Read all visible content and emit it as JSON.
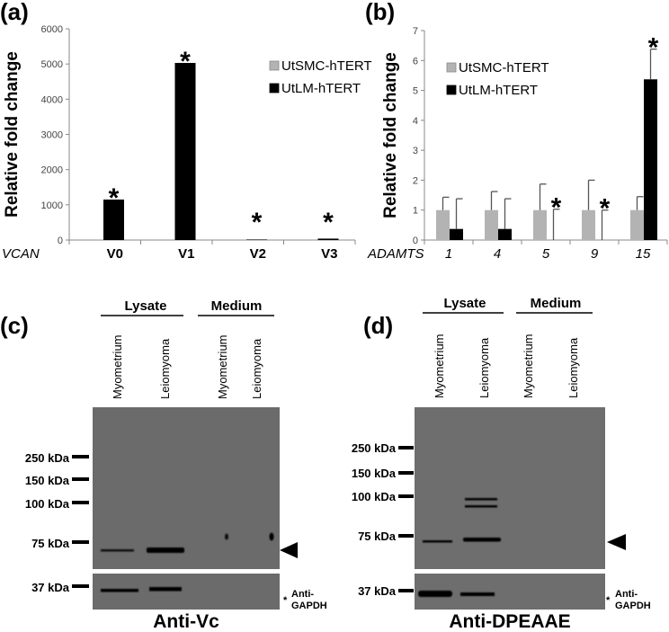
{
  "panels": {
    "a": "(a)",
    "b": "(b)",
    "c": "(c)",
    "d": "(d)"
  },
  "chart_data": [
    {
      "type": "bar",
      "panel": "(a)",
      "xlabel": "VCAN",
      "ylabel": "Relative fold change",
      "categories": [
        "V0",
        "V1",
        "V2",
        "V3"
      ],
      "ylim": [
        0,
        6000
      ],
      "yticks": [
        0,
        1000,
        2000,
        3000,
        4000,
        5000,
        6000
      ],
      "legend_position": "top-right",
      "series": [
        {
          "name": "UtSMC-hTERT",
          "color": "#b3b3b3",
          "values": [
            1,
            1,
            1,
            1
          ]
        },
        {
          "name": "UtLM-hTERT",
          "color": "#000000",
          "values": [
            1150,
            5030,
            15,
            40
          ]
        }
      ],
      "significant": [
        true,
        true,
        true,
        true
      ],
      "significance_mark": "*"
    },
    {
      "type": "bar",
      "panel": "(b)",
      "xlabel": "ADAMTS",
      "ylabel": "Relative fold change",
      "categories": [
        "1",
        "4",
        "5",
        "9",
        "15"
      ],
      "ylim": [
        0,
        7
      ],
      "yticks": [
        0,
        1,
        2,
        3,
        4,
        5,
        6,
        7
      ],
      "legend_position": "top-left",
      "series": [
        {
          "name": "UtSMC-hTERT",
          "color": "#b3b3b3",
          "values": [
            1,
            1,
            1,
            1,
            1
          ],
          "error": [
            0.43,
            0.62,
            0.87,
            1.0,
            0.45
          ]
        },
        {
          "name": "UtLM-hTERT",
          "color": "#000000",
          "values": [
            0.37,
            0.37,
            0,
            0,
            5.37
          ],
          "error": [
            1.01,
            1.01,
            1.03,
            1.0,
            1.01
          ]
        }
      ],
      "significant": [
        false,
        false,
        true,
        true,
        true
      ],
      "significance_mark": "*"
    }
  ],
  "blots": [
    {
      "panel": "(c)",
      "title": "Anti-Vc",
      "groups": [
        "Lysate",
        "Medium"
      ],
      "lanes": [
        "Myometrium",
        "Leiomyoma",
        "Myometrium",
        "Leiomyoma"
      ],
      "markers": [
        "250 kDa",
        "150 kDa",
        "100 kDa",
        "75 kDa",
        "37 kDa"
      ],
      "loading_mark": "*",
      "loading_label": [
        "Anti-",
        "GAPDH"
      ]
    },
    {
      "panel": "(d)",
      "title": "Anti-DPEAAE",
      "groups": [
        "Lysate",
        "Medium"
      ],
      "lanes": [
        "Myometrium",
        "Leiomyoma",
        "Myometrium",
        "Leiomyoma"
      ],
      "markers": [
        "250 kDa",
        "150 kDa",
        "100 kDa",
        "75 kDa",
        "37 kDa"
      ],
      "loading_mark": "*",
      "loading_label": [
        "Anti-",
        "GAPDH"
      ]
    }
  ]
}
